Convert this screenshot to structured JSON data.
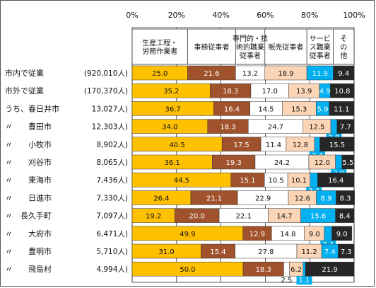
{
  "chart_data": {
    "type": "bar",
    "orientation": "horizontal",
    "stacked": true,
    "percent": true,
    "xlim": [
      0,
      100
    ],
    "x_ticks": [
      "0%",
      "20%",
      "40%",
      "60%",
      "80%",
      "100%"
    ],
    "grid": true,
    "categories": [
      {
        "name": "市内で従業",
        "total": "(920,010人)"
      },
      {
        "name": "市外で従業",
        "total": "(170,370人)"
      },
      {
        "name": "うち、春日井市",
        "total": "13,027人)"
      },
      {
        "name": "〃　　豊田市",
        "total": "12,303人)"
      },
      {
        "name": "〃　　小牧市",
        "total": "8,902人)"
      },
      {
        "name": "〃　　刈谷市",
        "total": "8,065人)"
      },
      {
        "name": "〃　　東海市",
        "total": "7,436人)"
      },
      {
        "name": "〃　　日進市",
        "total": "7,330人)"
      },
      {
        "name": "〃　長久手町",
        "total": "7,097人)"
      },
      {
        "name": "〃　　大府市",
        "total": "6,471人)"
      },
      {
        "name": "〃　　豊明市",
        "total": "5,710人)"
      },
      {
        "name": "〃　　飛島村",
        "total": "4,994人)"
      }
    ],
    "series": [
      {
        "name": "生産工程・労務作業者",
        "color": "#ffc000",
        "label_color": "#111111",
        "values": [
          25.0,
          35.2,
          36.7,
          34.0,
          40.5,
          36.1,
          44.5,
          26.4,
          19.2,
          49.9,
          31.0,
          50.0
        ]
      },
      {
        "name": "事務従事者",
        "color": "#a0522d",
        "label_color": "#ffffff",
        "values": [
          21.6,
          18.3,
          16.4,
          18.3,
          17.5,
          19.3,
          15.1,
          21.1,
          20.0,
          12.9,
          15.4,
          18.3
        ]
      },
      {
        "name": "専門的・技術的職業従事者",
        "color": "#ffffff",
        "label_color": "#111111",
        "values": [
          13.2,
          17.0,
          14.5,
          24.7,
          11.4,
          24.2,
          10.5,
          22.9,
          22.1,
          14.8,
          27.8,
          2.5
        ]
      },
      {
        "name": "販売従事者",
        "color": "#fbd5b5",
        "label_color": "#111111",
        "values": [
          18.9,
          13.9,
          15.3,
          12.5,
          12.8,
          12.0,
          10.1,
          12.6,
          14.7,
          9.0,
          11.2,
          6.2
        ]
      },
      {
        "name": "サービス職業従事者",
        "color": "#00b0f0",
        "label_color": "#ffffff",
        "values": [
          11.9,
          4.9,
          5.9,
          2.8,
          2.4,
          2.9,
          3.4,
          8.9,
          15.6,
          3.4,
          7.4,
          1.1
        ]
      },
      {
        "name": "その他",
        "color": "#262626",
        "label_color": "#ffffff",
        "values": [
          9.4,
          10.8,
          11.1,
          7.7,
          15.5,
          5.5,
          16.4,
          8.3,
          8.4,
          9.0,
          7.3,
          21.9
        ]
      }
    ],
    "header_labels": [
      "生産工程・\n労務作業者",
      "事務従事者",
      "専門的・技\n術的職業\n従事者",
      "販売従事者",
      "サービ\nス職業\n従事者",
      "そ\nの\n他"
    ],
    "title": "",
    "xlabel": "",
    "ylabel": ""
  }
}
